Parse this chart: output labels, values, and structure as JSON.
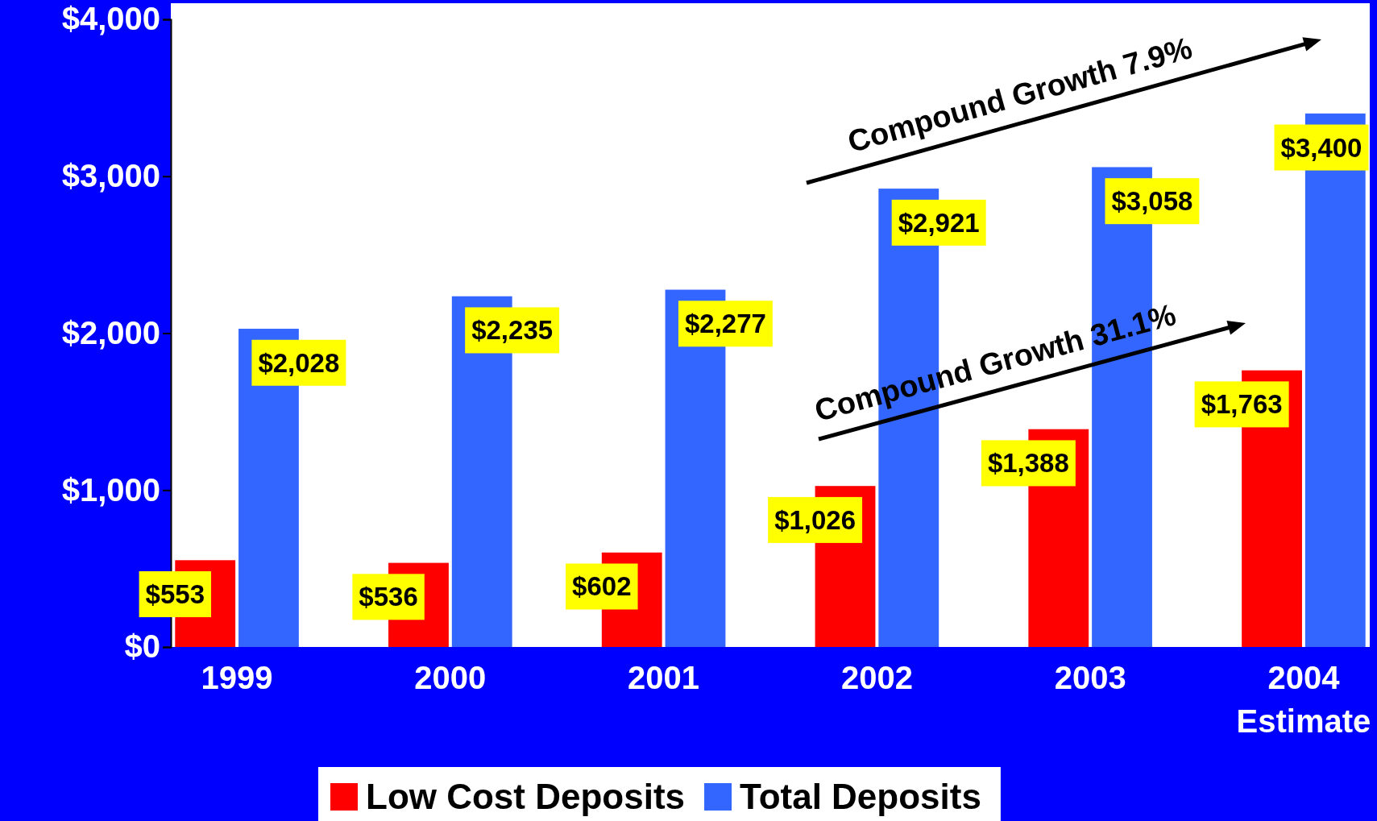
{
  "chart_data": {
    "type": "bar",
    "categories": [
      "1999",
      "2000",
      "2001",
      "2002",
      "2003",
      "2004 Estimate"
    ],
    "series": [
      {
        "name": "Low Cost Deposits",
        "color": "#ff0000",
        "values": [
          553,
          536,
          602,
          1026,
          1388,
          1763
        ],
        "value_labels": [
          "$553",
          "$536",
          "$602",
          "$1,026",
          "$1,388",
          "$1,763"
        ]
      },
      {
        "name": "Total Deposits",
        "color": "#3366ff",
        "values": [
          2028,
          2235,
          2277,
          2921,
          3058,
          3400
        ],
        "value_labels": [
          "$2,028",
          "$2,235",
          "$2,277",
          "$2,921",
          "$3,058",
          "$3,400"
        ]
      }
    ],
    "ylim": [
      0,
      4000
    ],
    "yticks": [
      {
        "value": 0,
        "label": "$0"
      },
      {
        "value": 1000,
        "label": "$1,000"
      },
      {
        "value": 2000,
        "label": "$2,000"
      },
      {
        "value": 3000,
        "label": "$3,000"
      },
      {
        "value": 4000,
        "label": "$4,000"
      }
    ],
    "annotations": [
      "Compound Growth 7.9%",
      "Compound Growth 31.1%"
    ],
    "legend": "bottom",
    "grid": false
  }
}
